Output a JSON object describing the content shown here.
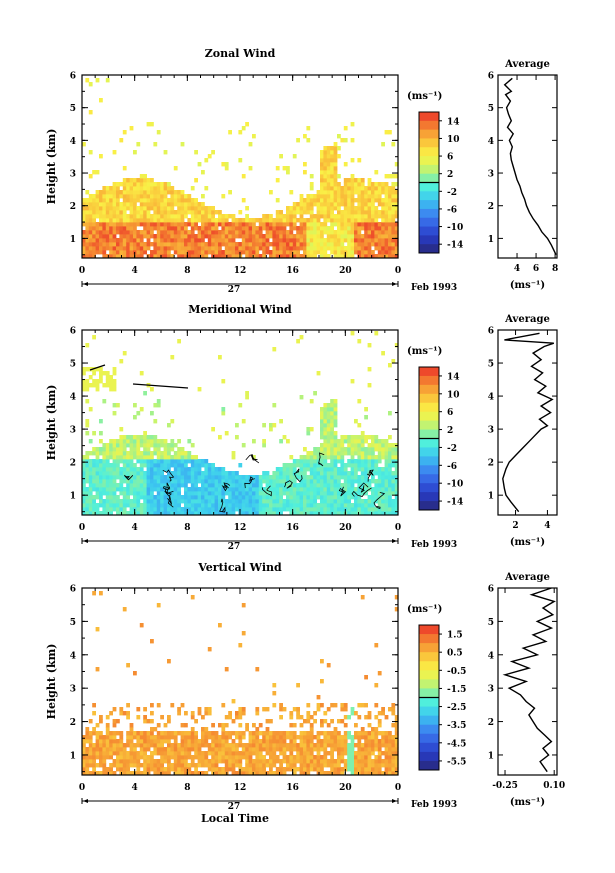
{
  "figure": {
    "x_title": "Local Time",
    "date_label": "Feb 1993",
    "day_label": "27",
    "y_title": "Height (km)",
    "unit_label": "(ms⁻¹)",
    "side_title": "Average"
  },
  "chart_data": [
    {
      "type": "heatmap",
      "title": "Zonal Wind",
      "xlabel": "Local Time",
      "ylabel": "Height (km)",
      "x_ticks": [
        "0",
        "4",
        "8",
        "12",
        "16",
        "20",
        "0"
      ],
      "xlim": [
        0,
        24
      ],
      "y_ticks": [
        "1",
        "2",
        "3",
        "4",
        "5",
        "6"
      ],
      "ylim": [
        0.4,
        6
      ],
      "colorbar": {
        "label": "(ms⁻¹)",
        "ticks": [
          "14",
          "10",
          "6",
          "2",
          "-2",
          "-6",
          "-10",
          "-14"
        ],
        "range": [
          -16,
          16
        ]
      },
      "data_description_levels": [
        {
          "h": [
            0.4,
            1.6
          ],
          "value": 10
        },
        {
          "h": [
            1.6,
            2.6
          ],
          "value": 7
        },
        {
          "h": [
            2.6,
            4.2
          ],
          "value": 4
        }
      ],
      "profile": {
        "title": "Average",
        "xlabel": "(ms⁻¹)",
        "x_ticks": [
          "4",
          "6",
          "8"
        ],
        "xlim": [
          2,
          8.2
        ],
        "y_ticks": [
          "1",
          "2",
          "3",
          "4",
          "5",
          "6"
        ],
        "ylim": [
          0.4,
          6
        ],
        "x": [
          8.1,
          7.6,
          7.2,
          6.6,
          6.2,
          5.7,
          5.3,
          5.0,
          4.8,
          4.5,
          4.3,
          4.0,
          3.8,
          3.6,
          3.4,
          3.3,
          3.5,
          3.2,
          3.6,
          3.0,
          3.4,
          3.1,
          2.9,
          3.3,
          2.8,
          3.4,
          2.7,
          3.5
        ],
        "y": [
          0.5,
          0.8,
          1.0,
          1.2,
          1.4,
          1.6,
          1.8,
          2.0,
          2.2,
          2.4,
          2.6,
          2.8,
          3.0,
          3.2,
          3.4,
          3.6,
          3.8,
          4.0,
          4.2,
          4.4,
          4.6,
          4.8,
          5.0,
          5.2,
          5.4,
          5.5,
          5.7,
          5.9
        ]
      }
    },
    {
      "type": "heatmap",
      "title": "Meridional Wind",
      "xlabel": "Local Time",
      "ylabel": "Height (km)",
      "x_ticks": [
        "0",
        "4",
        "8",
        "12",
        "16",
        "20",
        "0"
      ],
      "xlim": [
        0,
        24
      ],
      "y_ticks": [
        "1",
        "2",
        "3",
        "4",
        "5",
        "6"
      ],
      "ylim": [
        0.4,
        6
      ],
      "colorbar": {
        "label": "(ms⁻¹)",
        "ticks": [
          "14",
          "10",
          "6",
          "2",
          "-2",
          "-6",
          "-10",
          "-14"
        ],
        "range": [
          -16,
          16
        ]
      },
      "profile": {
        "title": "Average",
        "xlabel": "(ms⁻¹)",
        "x_ticks": [
          "2",
          "4"
        ],
        "xlim": [
          0.9,
          4.6
        ],
        "y_ticks": [
          "1",
          "2",
          "3",
          "4",
          "5",
          "6"
        ],
        "ylim": [
          0.4,
          6
        ],
        "x": [
          2.2,
          1.7,
          1.4,
          1.3,
          1.2,
          1.4,
          1.6,
          2.0,
          2.4,
          2.8,
          3.2,
          3.6,
          4.0,
          3.5,
          4.2,
          3.6,
          4.3,
          3.4,
          3.9,
          3.2,
          3.7,
          3.0,
          3.6,
          3.1,
          3.8,
          4.4,
          1.3,
          3.5
        ],
        "y": [
          0.5,
          0.8,
          1.0,
          1.2,
          1.5,
          1.8,
          2.0,
          2.2,
          2.4,
          2.6,
          2.8,
          3.0,
          3.1,
          3.3,
          3.5,
          3.7,
          3.9,
          4.1,
          4.3,
          4.5,
          4.7,
          4.9,
          5.1,
          5.3,
          5.5,
          5.6,
          5.7,
          5.9
        ]
      }
    },
    {
      "type": "heatmap",
      "title": "Vertical Wind",
      "xlabel": "Local Time",
      "ylabel": "Height (km)",
      "x_ticks": [
        "0",
        "4",
        "8",
        "12",
        "16",
        "20",
        "0"
      ],
      "xlim": [
        0,
        24
      ],
      "y_ticks": [
        "1",
        "2",
        "3",
        "4",
        "5",
        "6"
      ],
      "ylim": [
        0.4,
        6
      ],
      "colorbar": {
        "label": "(ms⁻¹)",
        "ticks": [
          "1.5",
          "0.5",
          "-0.5",
          "-1.5",
          "-2.5",
          "-3.5",
          "-4.5",
          "-5.5"
        ],
        "range": [
          -6,
          2
        ]
      },
      "profile": {
        "title": "Average",
        "xlabel": "(ms⁻¹)",
        "x_ticks": [
          "-0.25",
          "0.10"
        ],
        "xlim": [
          -0.3,
          0.12
        ],
        "y_ticks": [
          "1",
          "2",
          "3",
          "4",
          "5",
          "6"
        ],
        "ylim": [
          0.4,
          6
        ],
        "x": [
          0.05,
          0.0,
          0.06,
          0.02,
          0.08,
          0.03,
          -0.02,
          -0.05,
          -0.08,
          -0.04,
          -0.1,
          -0.14,
          -0.22,
          -0.1,
          -0.25,
          -0.08,
          -0.2,
          -0.02,
          -0.12,
          0.04,
          -0.05,
          0.08,
          -0.02,
          0.09,
          0.02,
          0.1,
          -0.06,
          0.08
        ],
        "y": [
          0.5,
          0.8,
          1.0,
          1.2,
          1.4,
          1.6,
          1.8,
          2.0,
          2.2,
          2.4,
          2.6,
          2.8,
          3.0,
          3.2,
          3.4,
          3.6,
          3.8,
          4.0,
          4.2,
          4.4,
          4.6,
          4.8,
          5.0,
          5.2,
          5.4,
          5.6,
          5.8,
          6.0
        ]
      }
    }
  ]
}
